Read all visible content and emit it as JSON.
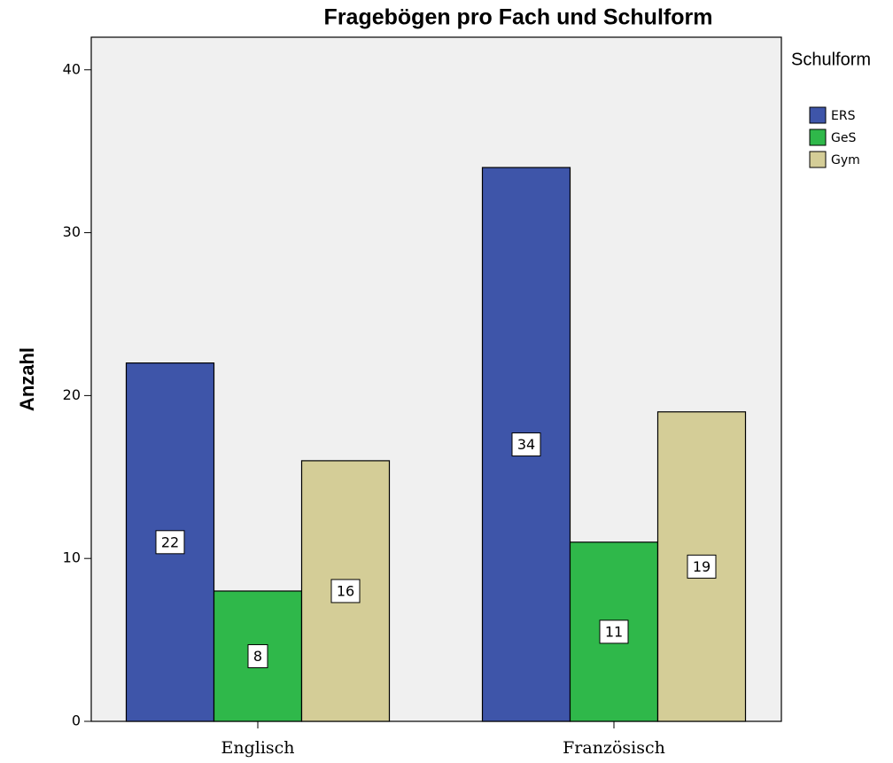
{
  "chart_data": {
    "type": "bar",
    "title": "Fragebögen pro Fach und Schulform",
    "y_label": "Anzahl",
    "legend_title": "Schulform",
    "legend": "right",
    "categories": [
      "Englisch",
      "Französisch"
    ],
    "series": [
      {
        "name": "ERS",
        "color": "#3e55a9",
        "values": [
          22,
          34
        ]
      },
      {
        "name": "GeS",
        "color": "#2fb84a",
        "values": [
          8,
          11
        ]
      },
      {
        "name": "Gym",
        "color": "#d4cd97",
        "values": [
          16,
          19
        ]
      }
    ],
    "ylim": [
      0,
      42
    ],
    "yticks": [
      0,
      10,
      20,
      30,
      40
    ],
    "grid": false
  }
}
